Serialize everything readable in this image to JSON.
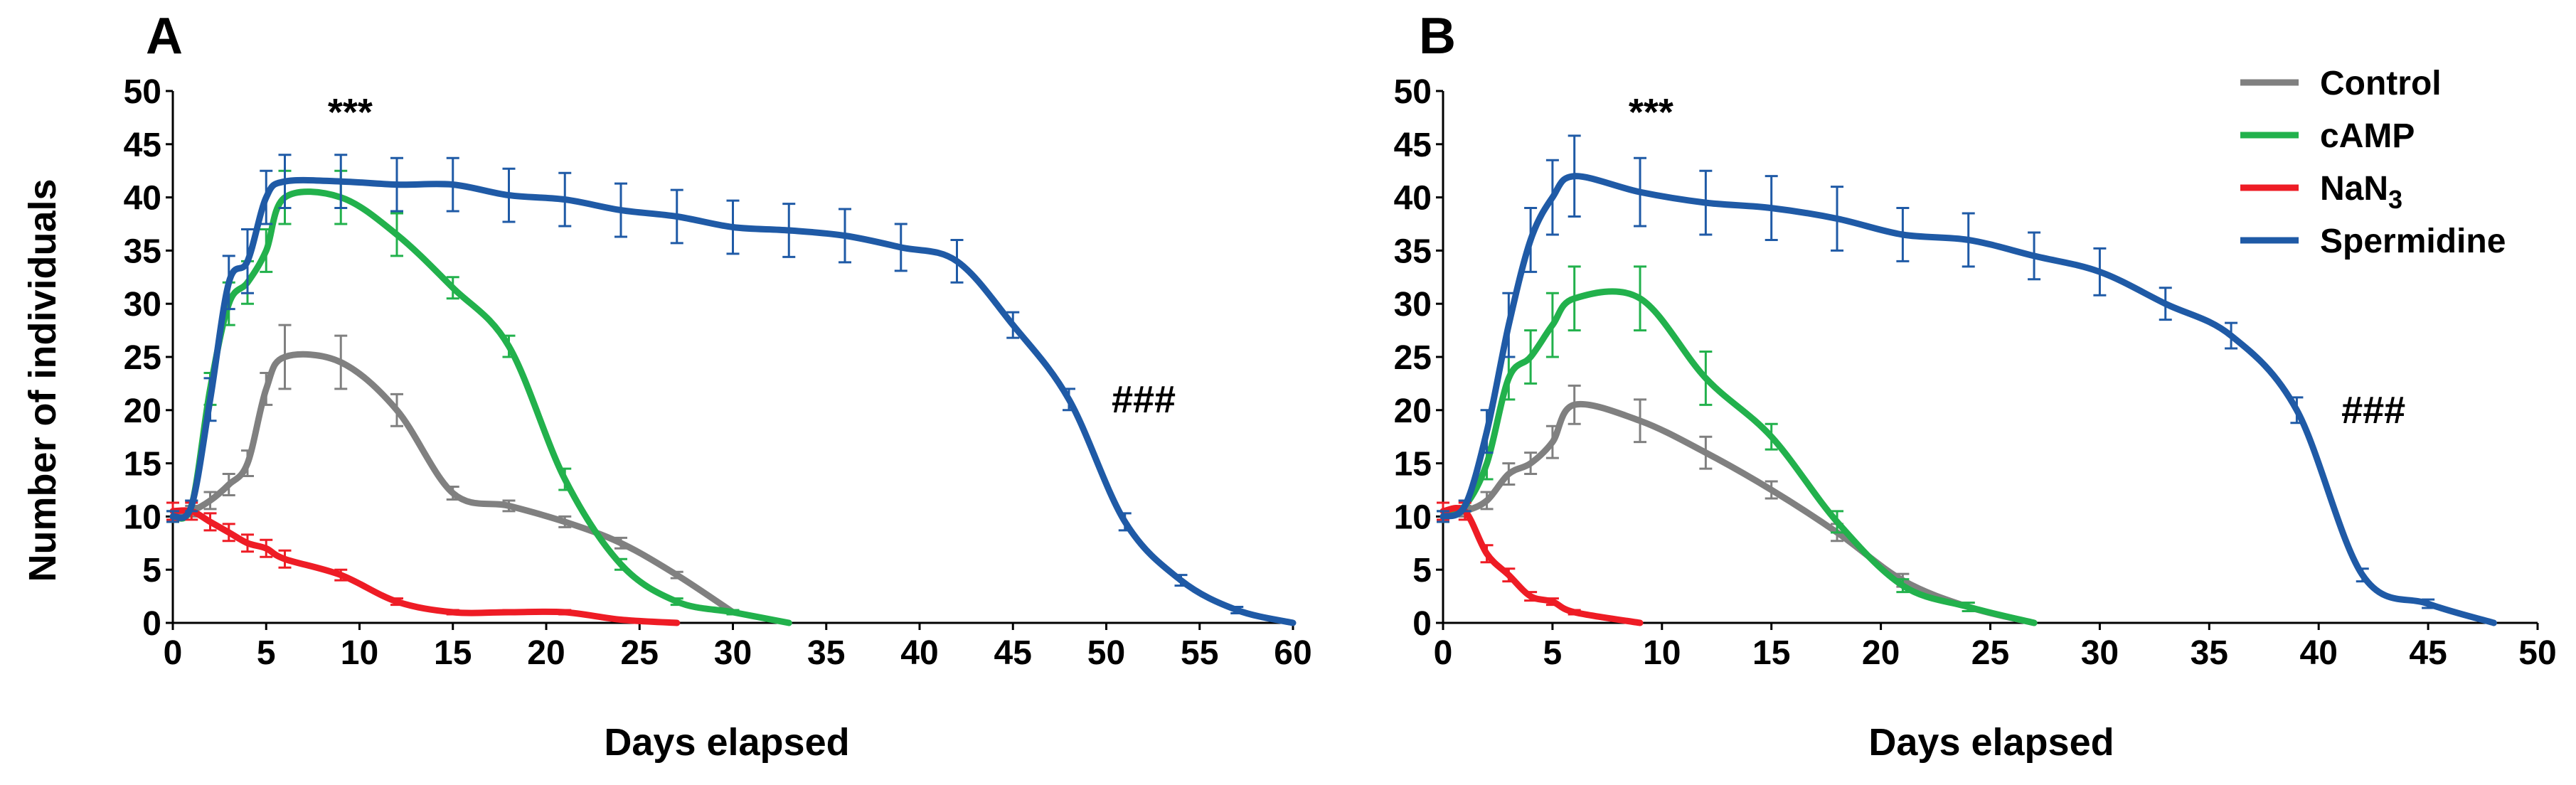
{
  "chart_data": [
    {
      "type": "line",
      "panel_label": "A",
      "xlabel": "Days elapsed",
      "ylabel": "Number of individuals",
      "xlim": [
        0,
        60
      ],
      "ylim": [
        0,
        50
      ],
      "xticks": [
        0,
        5,
        10,
        15,
        20,
        25,
        30,
        35,
        40,
        45,
        50,
        55,
        60
      ],
      "yticks": [
        0,
        5,
        10,
        15,
        20,
        25,
        30,
        35,
        40,
        45,
        50
      ],
      "annotations": [
        {
          "text": "***",
          "x": 9.5,
          "y": 48
        },
        {
          "text": "###",
          "x": 52,
          "y": 21
        }
      ],
      "series": [
        {
          "name": "Control",
          "color": "#808080",
          "x": [
            0,
            1,
            2,
            3,
            4,
            5,
            6,
            9,
            12,
            15,
            18,
            21,
            24,
            27,
            30
          ],
          "y": [
            10,
            10.5,
            11.5,
            13,
            15,
            22,
            25,
            24.5,
            20,
            12.2,
            11,
            9.5,
            7.5,
            4.5,
            1
          ],
          "err": [
            0.5,
            0.5,
            0.8,
            1,
            1.2,
            1.5,
            3,
            2.5,
            1.5,
            0.6,
            0.5,
            0.5,
            0.5,
            0.3,
            0.2
          ]
        },
        {
          "name": "cAMP",
          "color": "#22b14c",
          "x": [
            0,
            1,
            2,
            3,
            4,
            5,
            6,
            9,
            12,
            15,
            18,
            21,
            24,
            27,
            30,
            33
          ],
          "y": [
            10,
            11,
            22,
            30,
            32,
            35,
            40,
            40,
            36.5,
            31.5,
            26,
            13.5,
            5.5,
            2,
            1,
            0
          ],
          "err": [
            0.5,
            0.5,
            1.5,
            2,
            2,
            2,
            2.5,
            2.5,
            2,
            1,
            1,
            1,
            0.5,
            0.3,
            0.2,
            0
          ]
        },
        {
          "name": "NaN3",
          "color": "#ee1c25",
          "x": [
            0,
            1,
            2,
            3,
            4,
            5,
            6,
            9,
            12,
            15,
            18,
            21,
            24,
            27
          ],
          "y": [
            10.5,
            10.5,
            9.5,
            8.5,
            7.5,
            7,
            6,
            4.5,
            2,
            1,
            1,
            1,
            0.3,
            0
          ],
          "err": [
            0.8,
            0.8,
            0.8,
            0.8,
            0.8,
            0.8,
            0.8,
            0.5,
            0.3,
            0.2,
            0.2,
            0.2,
            0.1,
            0
          ]
        },
        {
          "name": "Spermidine",
          "color": "#1f5aa6",
          "x": [
            0,
            1,
            2,
            3,
            4,
            5,
            6,
            9,
            12,
            15,
            18,
            21,
            24,
            27,
            30,
            33,
            36,
            39,
            42,
            45,
            48,
            51,
            54,
            57,
            60
          ],
          "y": [
            10,
            11,
            21,
            32,
            34,
            40,
            41.5,
            41.5,
            41.2,
            41.2,
            40.2,
            39.8,
            38.8,
            38.2,
            37.2,
            36.9,
            36.4,
            35.3,
            34,
            28,
            21,
            9.5,
            4,
            1.2,
            0
          ],
          "err": [
            0.5,
            0.5,
            2,
            2.5,
            3,
            2.5,
            2.5,
            2.5,
            2.5,
            2.5,
            2.5,
            2.5,
            2.5,
            2.5,
            2.5,
            2.5,
            2.5,
            2.2,
            2,
            1.2,
            1,
            0.8,
            0.5,
            0.3,
            0
          ]
        }
      ]
    },
    {
      "type": "line",
      "panel_label": "B",
      "xlabel": "Days elapsed",
      "ylabel": "",
      "xlim": [
        0,
        50
      ],
      "ylim": [
        0,
        50
      ],
      "xticks": [
        0,
        5,
        10,
        15,
        20,
        25,
        30,
        35,
        40,
        45,
        50
      ],
      "yticks": [
        0,
        5,
        10,
        15,
        20,
        25,
        30,
        35,
        40,
        45,
        50
      ],
      "annotations": [
        {
          "text": "***",
          "x": 9.5,
          "y": 48
        },
        {
          "text": "###",
          "x": 42.5,
          "y": 20
        }
      ],
      "series": [
        {
          "name": "Control",
          "color": "#808080",
          "x": [
            0,
            1,
            2,
            3,
            4,
            5,
            6,
            9,
            12,
            15,
            18,
            21,
            24,
            27
          ],
          "y": [
            10,
            10.5,
            11.5,
            14,
            15,
            17,
            20.5,
            19,
            16,
            12.5,
            8.5,
            4,
            1.5,
            0
          ],
          "err": [
            0.5,
            0.5,
            0.8,
            1,
            1,
            1.5,
            1.8,
            2,
            1.5,
            0.8,
            0.8,
            0.6,
            0.4,
            0
          ]
        },
        {
          "name": "cAMP",
          "color": "#22b14c",
          "x": [
            0,
            1,
            2,
            3,
            4,
            5,
            6,
            9,
            12,
            15,
            18,
            21,
            24,
            27
          ],
          "y": [
            10,
            11,
            15,
            23,
            25,
            28,
            30.5,
            30.5,
            23,
            17.5,
            9.5,
            3.5,
            1.5,
            0
          ],
          "err": [
            0.5,
            0.5,
            1.5,
            2,
            2.5,
            3,
            3,
            3,
            2.5,
            1.2,
            1,
            0.6,
            0.4,
            0
          ]
        },
        {
          "name": "NaN3",
          "color": "#ee1c25",
          "x": [
            0,
            1,
            2,
            3,
            4,
            5,
            6,
            9
          ],
          "y": [
            10.5,
            10.5,
            6.5,
            4.5,
            2.5,
            2,
            1,
            0
          ],
          "err": [
            0.8,
            0.8,
            0.8,
            0.6,
            0.4,
            0.3,
            0.2,
            0
          ]
        },
        {
          "name": "Spermidine",
          "color": "#1f5aa6",
          "x": [
            0,
            1,
            2,
            3,
            4,
            5,
            6,
            9,
            12,
            15,
            18,
            21,
            24,
            27,
            30,
            33,
            36,
            39,
            42,
            45,
            48
          ],
          "y": [
            10,
            11,
            18,
            28,
            36,
            40,
            42,
            40.5,
            39.5,
            39,
            38,
            36.5,
            36,
            34.5,
            33,
            30,
            27,
            20,
            4.5,
            1.8,
            0
          ],
          "err": [
            0.5,
            0.5,
            2,
            3,
            3,
            3.5,
            3.8,
            3.2,
            3,
            3,
            3,
            2.5,
            2.5,
            2.2,
            2.2,
            1.5,
            1.2,
            1.2,
            0.6,
            0.4,
            0
          ]
        }
      ],
      "legend": {
        "placement": "top-right",
        "entries": [
          {
            "label": "Control",
            "color": "#808080"
          },
          {
            "label": "cAMP",
            "color": "#22b14c"
          },
          {
            "label": "NaN3",
            "base": "NaN",
            "sub": "3",
            "color": "#ee1c25"
          },
          {
            "label": "Spermidine",
            "color": "#1f5aa6"
          }
        ]
      }
    }
  ]
}
